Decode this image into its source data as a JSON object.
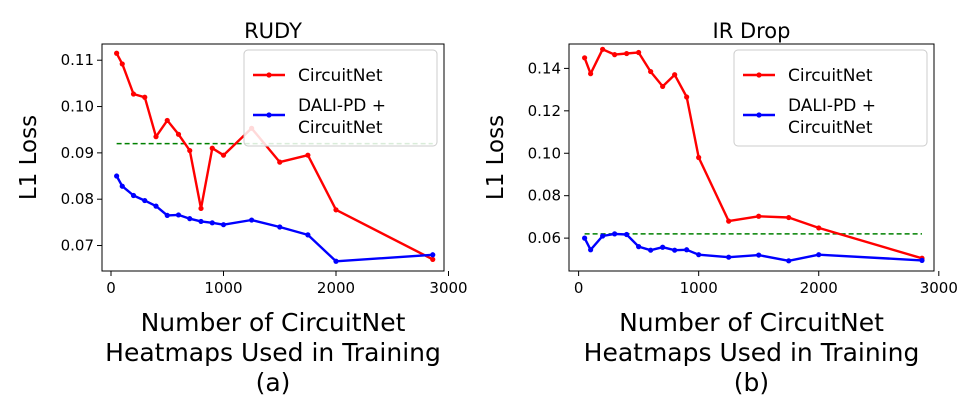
{
  "chart_data": [
    {
      "type": "line",
      "title": "RUDY",
      "xlabel_lines": [
        "Number of CircuitNet",
        "Heatmaps Used in Training"
      ],
      "ylabel": "L1 Loss",
      "panel_label": "(a)",
      "xlim": [
        -80,
        2960
      ],
      "ylim": [
        0.0645,
        0.1135
      ],
      "xticks": [
        0,
        1000,
        2000,
        3000
      ],
      "xtick_labels": [
        "0",
        "1000",
        "2000",
        "3000"
      ],
      "yticks": [
        0.07,
        0.08,
        0.09,
        0.1,
        0.11
      ],
      "ytick_labels": [
        "0.07",
        "0.08",
        "0.09",
        "0.10",
        "0.11"
      ],
      "legend_position": "top-right",
      "series": [
        {
          "name": "CircuitNet",
          "color": "#ff0000",
          "x": [
            50,
            100,
            200,
            300,
            400,
            500,
            600,
            700,
            800,
            900,
            1000,
            1250,
            1500,
            1750,
            2000,
            2860
          ],
          "y": [
            0.1115,
            0.1092,
            0.1027,
            0.102,
            0.0935,
            0.097,
            0.094,
            0.0905,
            0.078,
            0.091,
            0.0895,
            0.0953,
            0.088,
            0.0895,
            0.0777,
            0.067
          ]
        },
        {
          "name": "DALI-PD + CircuitNet",
          "legend_lines": [
            "DALI-PD +",
            "CircuitNet"
          ],
          "color": "#0000ff",
          "x": [
            50,
            100,
            200,
            300,
            400,
            500,
            600,
            700,
            800,
            900,
            1000,
            1250,
            1500,
            1750,
            2000,
            2860
          ],
          "y": [
            0.085,
            0.0828,
            0.0808,
            0.0797,
            0.0785,
            0.0765,
            0.0766,
            0.0758,
            0.0752,
            0.0749,
            0.0745,
            0.0755,
            0.074,
            0.0723,
            0.0666,
            0.068
          ]
        }
      ],
      "reference_line": {
        "y": 0.092,
        "x_range": [
          50,
          2860
        ],
        "color": "#008000",
        "style": "dashed"
      }
    },
    {
      "type": "line",
      "title": "IR Drop",
      "xlabel_lines": [
        "Number of CircuitNet",
        "Heatmaps Used in Training"
      ],
      "ylabel": "L1 Loss",
      "panel_label": "(b)",
      "xlim": [
        -80,
        2960
      ],
      "ylim": [
        0.0445,
        0.1515
      ],
      "xticks": [
        0,
        1000,
        2000,
        3000
      ],
      "xtick_labels": [
        "0",
        "1000",
        "2000",
        "3000"
      ],
      "yticks": [
        0.06,
        0.08,
        0.1,
        0.12,
        0.14
      ],
      "ytick_labels": [
        "0.06",
        "0.08",
        "0.10",
        "0.12",
        "0.14"
      ],
      "legend_position": "top-right",
      "series": [
        {
          "name": "CircuitNet",
          "color": "#ff0000",
          "x": [
            50,
            100,
            200,
            300,
            400,
            500,
            600,
            700,
            800,
            900,
            1000,
            1250,
            1500,
            1750,
            2000,
            2860
          ],
          "y": [
            0.145,
            0.1375,
            0.149,
            0.1465,
            0.147,
            0.1475,
            0.1385,
            0.1315,
            0.137,
            0.1265,
            0.098,
            0.068,
            0.0703,
            0.0697,
            0.0648,
            0.0505
          ]
        },
        {
          "name": "DALI-PD + CircuitNet",
          "legend_lines": [
            "DALI-PD +",
            "CircuitNet"
          ],
          "color": "#0000ff",
          "x": [
            50,
            100,
            200,
            300,
            400,
            500,
            600,
            700,
            800,
            900,
            1000,
            1250,
            1500,
            1750,
            2000,
            2860
          ],
          "y": [
            0.06,
            0.0545,
            0.061,
            0.062,
            0.0617,
            0.056,
            0.0543,
            0.0557,
            0.0543,
            0.0545,
            0.0522,
            0.051,
            0.052,
            0.0493,
            0.0522,
            0.0495
          ]
        }
      ],
      "reference_line": {
        "y": 0.062,
        "x_range": [
          50,
          2860
        ],
        "color": "#008000",
        "style": "dashed"
      }
    }
  ]
}
